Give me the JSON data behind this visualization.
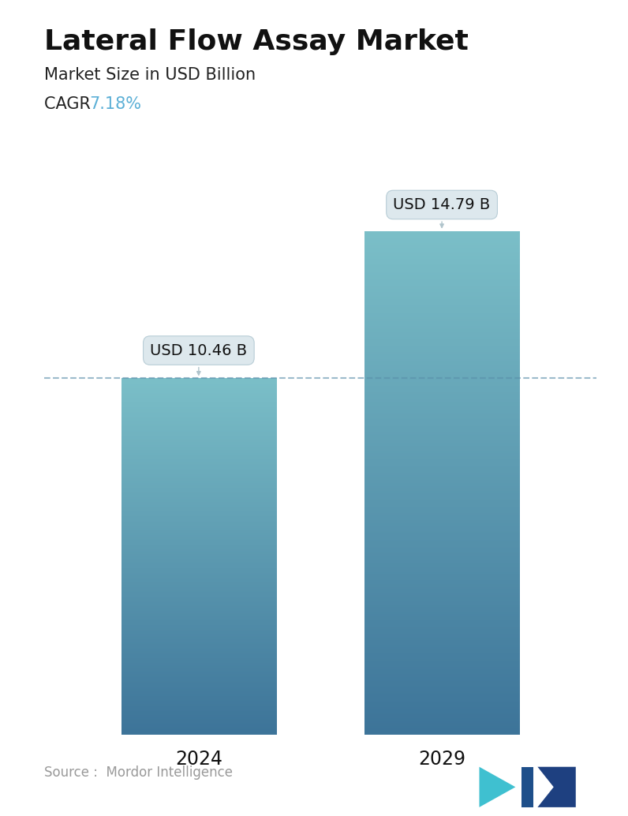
{
  "title": "Lateral Flow Assay Market",
  "subtitle": "Market Size in USD Billion",
  "cagr_label": "CAGR ",
  "cagr_value": "7.18%",
  "cagr_color": "#5bafd6",
  "categories": [
    "2024",
    "2029"
  ],
  "values": [
    10.46,
    14.79
  ],
  "value_labels": [
    "USD 10.46 B",
    "USD 14.79 B"
  ],
  "bar_top_color": "#7bbfc8",
  "bar_bottom_color": "#3d7499",
  "dashed_line_color": "#5a8faa",
  "dashed_line_value": 10.46,
  "source_text": "Source :  Mordor Intelligence",
  "source_color": "#999999",
  "background_color": "#ffffff",
  "title_fontsize": 26,
  "subtitle_fontsize": 15,
  "cagr_fontsize": 15,
  "xlabel_fontsize": 17,
  "label_fontsize": 14,
  "ylim": [
    0,
    17.5
  ],
  "bar_width": 0.28,
  "x_positions": [
    0.28,
    0.72
  ]
}
